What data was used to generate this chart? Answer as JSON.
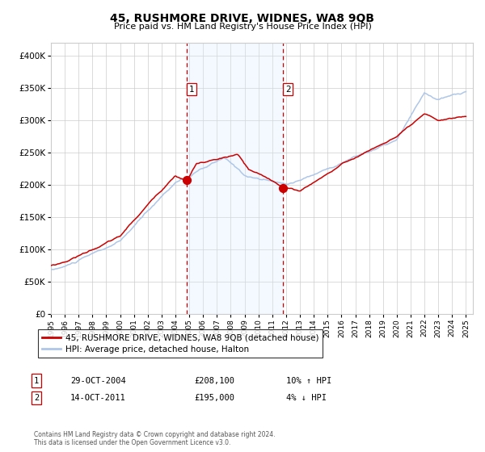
{
  "title": "45, RUSHMORE DRIVE, WIDNES, WA8 9QB",
  "subtitle": "Price paid vs. HM Land Registry's House Price Index (HPI)",
  "legend_line1": "45, RUSHMORE DRIVE, WIDNES, WA8 9QB (detached house)",
  "legend_line2": "HPI: Average price, detached house, Halton",
  "annotation1_label": "1",
  "annotation1_date": "29-OCT-2004",
  "annotation1_price": "£208,100",
  "annotation1_hpi": "10% ↑ HPI",
  "annotation2_label": "2",
  "annotation2_date": "14-OCT-2011",
  "annotation2_price": "£195,000",
  "annotation2_hpi": "4% ↓ HPI",
  "footer1": "Contains HM Land Registry data © Crown copyright and database right 2024.",
  "footer2": "This data is licensed under the Open Government Licence v3.0.",
  "hpi_color": "#aec6e8",
  "price_color": "#cc0000",
  "dot_color": "#cc0000",
  "shade_color": "#ddeeff",
  "vline_color": "#cc0000",
  "grid_color": "#cccccc",
  "bg_color": "#ffffff",
  "ylim": [
    0,
    420000
  ],
  "yticks": [
    0,
    50000,
    100000,
    150000,
    200000,
    250000,
    300000,
    350000,
    400000
  ],
  "year_start": 1995,
  "year_end": 2025,
  "sale1_year": 2004.83,
  "sale1_price": 208100,
  "sale2_year": 2011.79,
  "sale2_price": 195000
}
